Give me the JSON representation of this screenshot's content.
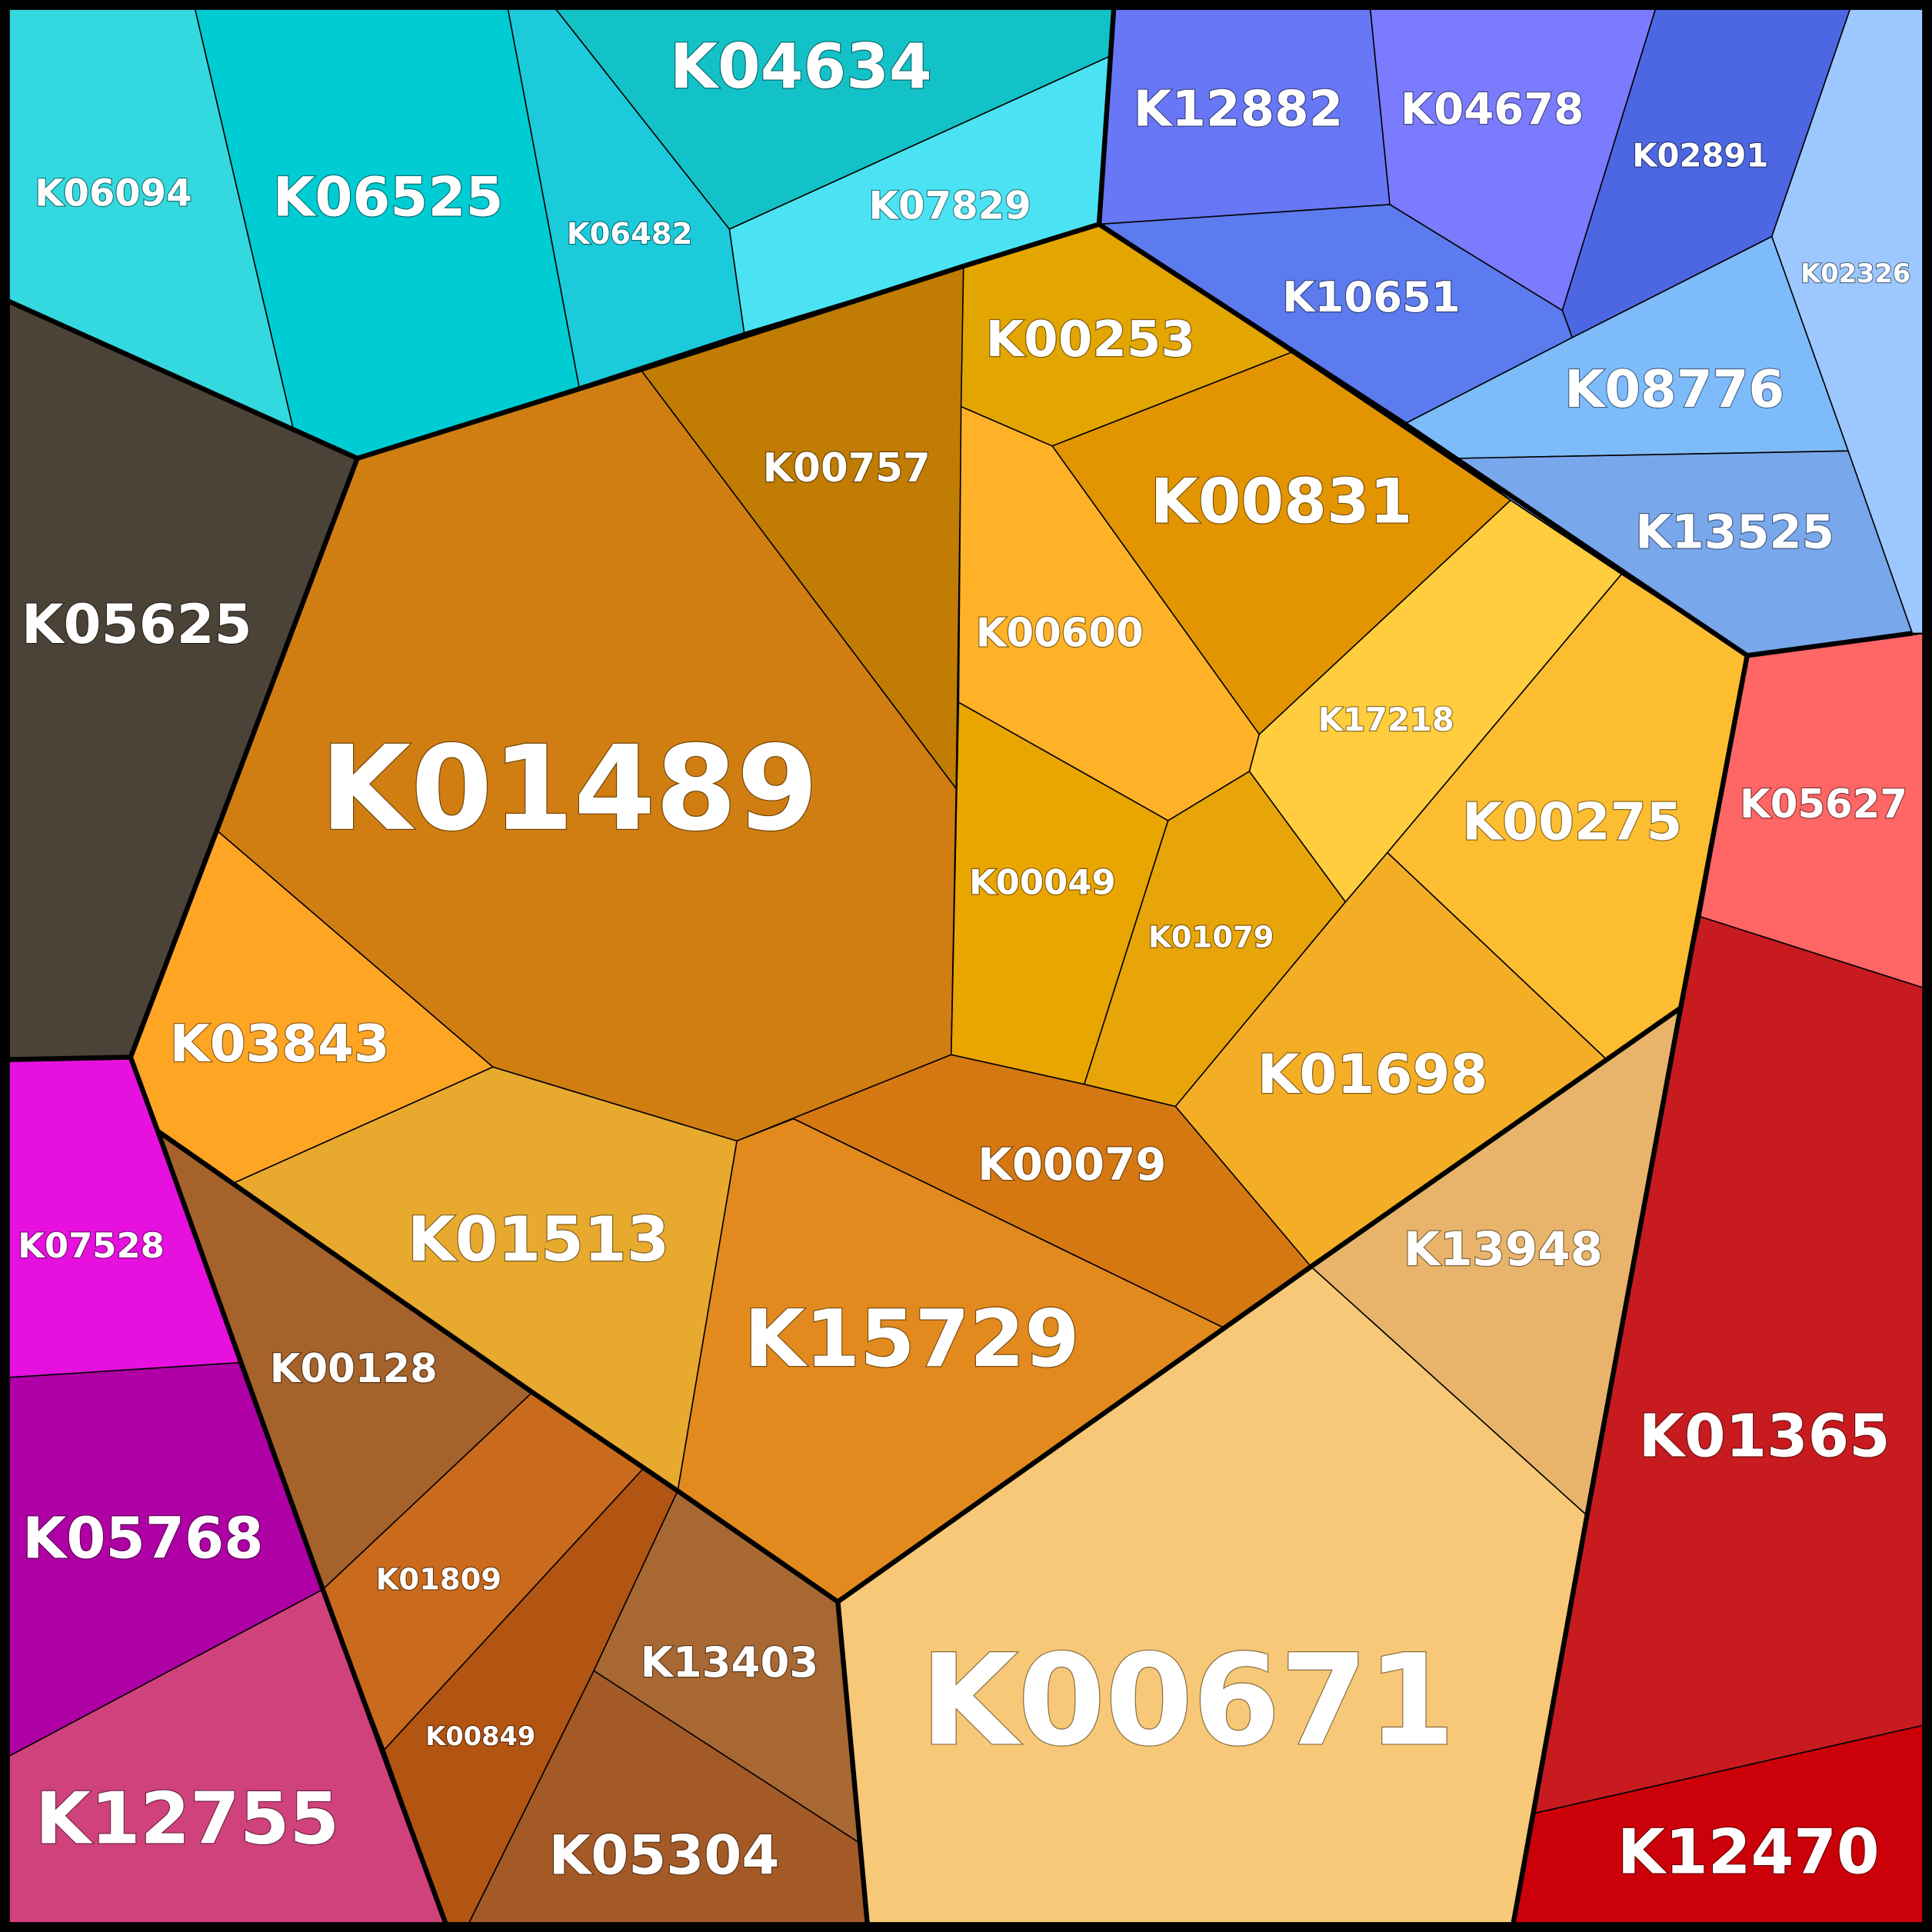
{
  "cells": [
    {
      "label": "K06094"
    },
    {
      "label": "K06525"
    },
    {
      "label": "K06482"
    },
    {
      "label": "K04634"
    },
    {
      "label": "K07829"
    },
    {
      "label": "K12882"
    },
    {
      "label": "K04678"
    },
    {
      "label": "K02891"
    },
    {
      "label": "K10651"
    },
    {
      "label": "K02326"
    },
    {
      "label": "K08776"
    },
    {
      "label": "K13525"
    },
    {
      "label": "K05627"
    },
    {
      "label": "K01365"
    },
    {
      "label": "K12470"
    },
    {
      "label": "K05625"
    },
    {
      "label": "K07528"
    },
    {
      "label": "K05768"
    },
    {
      "label": "K12755"
    },
    {
      "label": "K01489"
    },
    {
      "label": "K00757"
    },
    {
      "label": "K00253"
    },
    {
      "label": "K00831"
    },
    {
      "label": "K00600"
    },
    {
      "label": "K00049"
    },
    {
      "label": "K01079"
    },
    {
      "label": "K17218"
    },
    {
      "label": "K00275"
    },
    {
      "label": "K01698"
    },
    {
      "label": "K00079"
    },
    {
      "label": "K15729"
    },
    {
      "label": "K13948"
    },
    {
      "label": "K00671"
    },
    {
      "label": "K03843"
    },
    {
      "label": "K01513"
    },
    {
      "label": "K00128"
    },
    {
      "label": "K01809"
    },
    {
      "label": "K00849"
    },
    {
      "label": "K13403"
    },
    {
      "label": "K05304"
    }
  ]
}
